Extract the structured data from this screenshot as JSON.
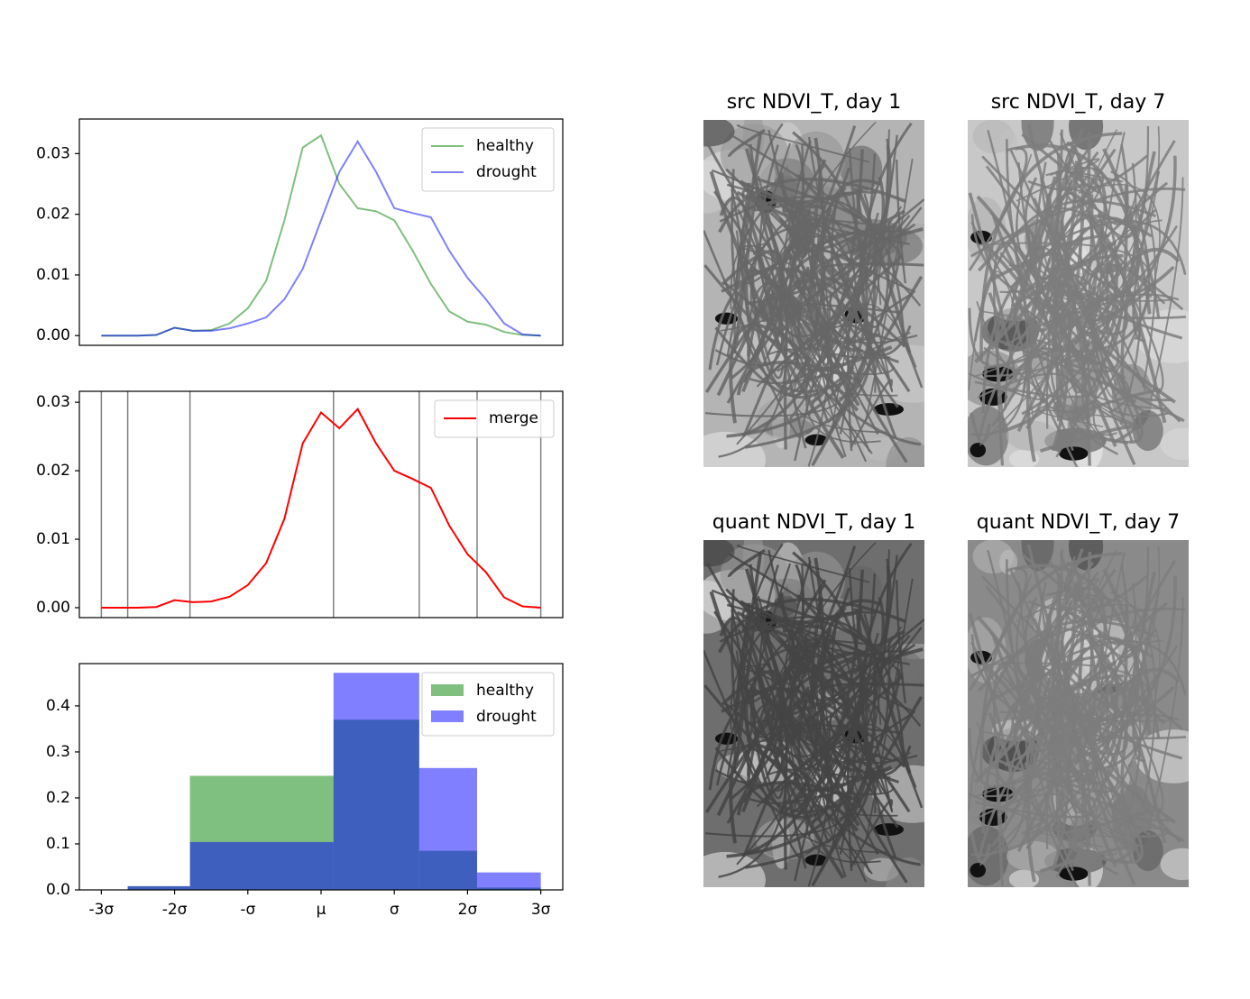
{
  "chart_data": [
    {
      "type": "line",
      "x": [
        -3,
        -2.75,
        -2.5,
        -2.25,
        -2,
        -1.75,
        -1.5,
        -1.25,
        -1,
        -0.75,
        -0.5,
        -0.25,
        0,
        0.25,
        0.5,
        0.75,
        1,
        1.25,
        1.5,
        1.75,
        2,
        2.25,
        2.5,
        2.75,
        3
      ],
      "series": [
        {
          "name": "healthy",
          "color": "green",
          "values": [
            0,
            0,
            0,
            0.0001,
            0.0013,
            0.0008,
            0.0009,
            0.002,
            0.0045,
            0.009,
            0.019,
            0.031,
            0.033,
            0.025,
            0.021,
            0.0205,
            0.019,
            0.014,
            0.0085,
            0.004,
            0.0023,
            0.0018,
            0.0006,
            0.0001,
            0
          ]
        },
        {
          "name": "drought",
          "color": "blue",
          "values": [
            0,
            0,
            0,
            0.0001,
            0.0013,
            0.0008,
            0.0008,
            0.0012,
            0.002,
            0.003,
            0.006,
            0.011,
            0.019,
            0.027,
            0.032,
            0.027,
            0.021,
            0.0202,
            0.0195,
            0.014,
            0.0095,
            0.006,
            0.002,
            0.0002,
            0
          ]
        }
      ],
      "xlim": [
        -3.3,
        3.3
      ],
      "ylim": [
        -0.0016,
        0.0357
      ],
      "yticks": [
        {
          "value": 0,
          "label": "0.00"
        },
        {
          "value": 0.01,
          "label": "0.01"
        },
        {
          "value": 0.02,
          "label": "0.02"
        },
        {
          "value": 0.03,
          "label": "0.03"
        }
      ],
      "legend": "upper right"
    },
    {
      "type": "line",
      "x": [
        -3,
        -2.75,
        -2.5,
        -2.25,
        -2,
        -1.75,
        -1.5,
        -1.25,
        -1,
        -0.75,
        -0.5,
        -0.25,
        0,
        0.25,
        0.5,
        0.75,
        1,
        1.25,
        1.5,
        1.75,
        2,
        2.25,
        2.5,
        2.75,
        3
      ],
      "series": [
        {
          "name": "merge",
          "color": "red",
          "values": [
            0,
            0,
            0,
            0.0001,
            0.0011,
            0.0008,
            0.0009,
            0.0016,
            0.0033,
            0.0065,
            0.013,
            0.024,
            0.0285,
            0.0262,
            0.029,
            0.024,
            0.02,
            0.0188,
            0.0175,
            0.012,
            0.0078,
            0.0052,
            0.0015,
            0.0002,
            0
          ]
        }
      ],
      "vlines": [
        -3,
        -2.64,
        -1.79,
        0.17,
        1.34,
        2.13,
        3
      ],
      "xlim": [
        -3.3,
        3.3
      ],
      "ylim": [
        -0.00145,
        0.0316
      ],
      "yticks": [
        {
          "value": 0,
          "label": "0.00"
        },
        {
          "value": 0.01,
          "label": "0.01"
        },
        {
          "value": 0.02,
          "label": "0.02"
        },
        {
          "value": 0.03,
          "label": "0.03"
        }
      ],
      "legend": "upper right"
    },
    {
      "type": "histogram",
      "bins": [
        -3,
        -2.64,
        -1.79,
        0.17,
        1.34,
        2.13,
        3
      ],
      "series": [
        {
          "name": "healthy",
          "color": "green",
          "values": [
            0,
            0.008,
            0.248,
            0.37,
            0.085,
            0.005
          ]
        },
        {
          "name": "drought",
          "color": "blue",
          "values": [
            0,
            0.008,
            0.104,
            0.472,
            0.265,
            0.038
          ]
        }
      ],
      "xlim": [
        -3.3,
        3.3
      ],
      "ylim": [
        0,
        0.492
      ],
      "xticks": [
        {
          "value": -3,
          "label": "-3σ"
        },
        {
          "value": -2,
          "label": "-2σ"
        },
        {
          "value": -1,
          "label": "-σ"
        },
        {
          "value": 0,
          "label": "μ"
        },
        {
          "value": 1,
          "label": "σ"
        },
        {
          "value": 2,
          "label": "2σ"
        },
        {
          "value": 3,
          "label": "3σ"
        }
      ],
      "yticks": [
        {
          "value": 0,
          "label": "0.0"
        },
        {
          "value": 0.1,
          "label": "0.1"
        },
        {
          "value": 0.2,
          "label": "0.2"
        },
        {
          "value": 0.3,
          "label": "0.3"
        },
        {
          "value": 0.4,
          "label": "0.4"
        }
      ],
      "legend": "upper right"
    }
  ],
  "images": [
    {
      "title": "src NDVI_T, day 1"
    },
    {
      "title": "src NDVI_T, day 7"
    },
    {
      "title": "quant NDVI_T, day 1"
    },
    {
      "title": "quant NDVI_T, day 7"
    }
  ]
}
